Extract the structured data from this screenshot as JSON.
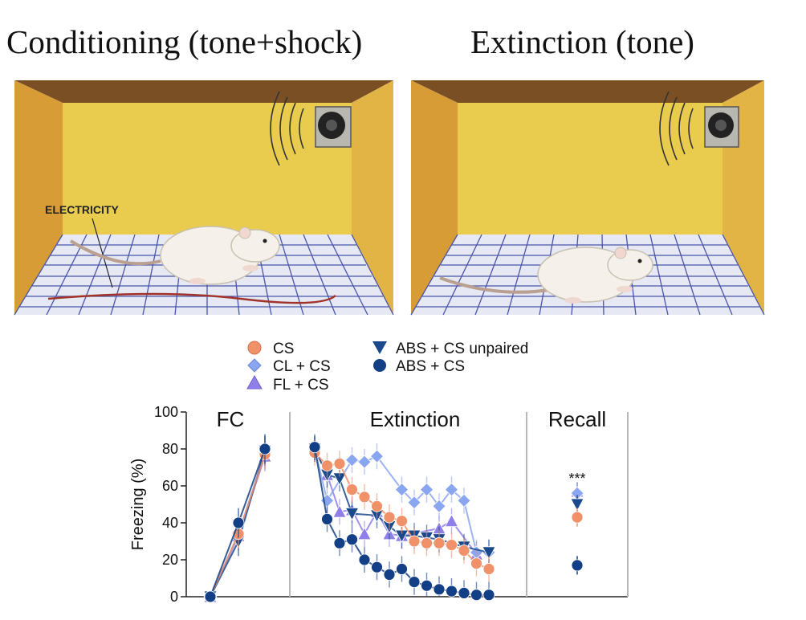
{
  "titles": {
    "left": "Conditioning (tone+shock)",
    "right": "Extinction (tone)"
  },
  "illustration": {
    "electricity_label": "ELECTRICITY"
  },
  "colors": {
    "CS": "#f0916a",
    "CL": "#8aa6f0",
    "FL": "#8f7fe8",
    "unpaired": "#1a4a8c",
    "ABS": "#133f86",
    "wall_back": "#e8c94a",
    "wall_side": "#dca53a",
    "ceiling": "#8a5a2a",
    "floor": "#e4e7f2",
    "grid": "#4a54a8"
  },
  "chart_data": {
    "type": "line",
    "ylabel": "Freezing (%)",
    "ylim": [
      0,
      100
    ],
    "yticks": [
      "0",
      "20",
      "40",
      "60",
      "80",
      "100"
    ],
    "panels": [
      {
        "name": "FC",
        "n": 3
      },
      {
        "name": "Extinction",
        "n": 20
      },
      {
        "name": "Recall",
        "n": 1
      }
    ],
    "annotation": "***",
    "series": [
      {
        "name": "CS",
        "marker": "circle",
        "color": "#f0916a",
        "fc": [
          0,
          34,
          77
        ],
        "ext": [
          78,
          71,
          72,
          58,
          54,
          49,
          43,
          41,
          30,
          29,
          29,
          28,
          25,
          18,
          15,
          null,
          null,
          null,
          null,
          null
        ],
        "ext_x": [
          0,
          1,
          2,
          3,
          4,
          5,
          6,
          7,
          8,
          9,
          10,
          11,
          12,
          13,
          14
        ],
        "recall": 43
      },
      {
        "name": "CL + CS",
        "marker": "diamond",
        "color": "#8aa6f0",
        "fc": [
          0,
          34,
          78
        ],
        "ext": [
          80,
          52,
          74,
          73,
          76,
          58,
          51,
          58,
          49,
          58,
          52,
          24,
          24
        ],
        "ext_x": [
          0,
          1,
          3,
          4,
          5,
          7,
          8,
          9,
          10,
          11,
          12,
          13,
          14
        ],
        "recall": 56
      },
      {
        "name": "FL + CS",
        "marker": "triangle-up",
        "color": "#8f7fe8",
        "fc": [
          0,
          33,
          76
        ],
        "ext": [
          80,
          66,
          46,
          47,
          34,
          46,
          34,
          33,
          37,
          41,
          23
        ],
        "ext_x": [
          0,
          1,
          2,
          3,
          4,
          5,
          6,
          7,
          10,
          11,
          13
        ],
        "recall": 57
      },
      {
        "name": "ABS + CS unpaired",
        "marker": "triangle-down",
        "color": "#1a4a8c",
        "fc": [
          0,
          30,
          79
        ],
        "ext": [
          80,
          66,
          64,
          45,
          44,
          38,
          33,
          33,
          32,
          31,
          27,
          24
        ],
        "ext_x": [
          0,
          1,
          2,
          3,
          5,
          6,
          7,
          8,
          9,
          10,
          12,
          14
        ],
        "recall": 50
      },
      {
        "name": "ABS + CS",
        "marker": "circle",
        "color": "#133f86",
        "fc": [
          0,
          40,
          80
        ],
        "ext": [
          81,
          42,
          29,
          31,
          20,
          16,
          12,
          15,
          8,
          6,
          4,
          3,
          2,
          1,
          1
        ],
        "ext_x": [
          0,
          1,
          2,
          3,
          4,
          5,
          6,
          7,
          8,
          9,
          10,
          11,
          12,
          13,
          14
        ],
        "recall": 17
      }
    ]
  }
}
